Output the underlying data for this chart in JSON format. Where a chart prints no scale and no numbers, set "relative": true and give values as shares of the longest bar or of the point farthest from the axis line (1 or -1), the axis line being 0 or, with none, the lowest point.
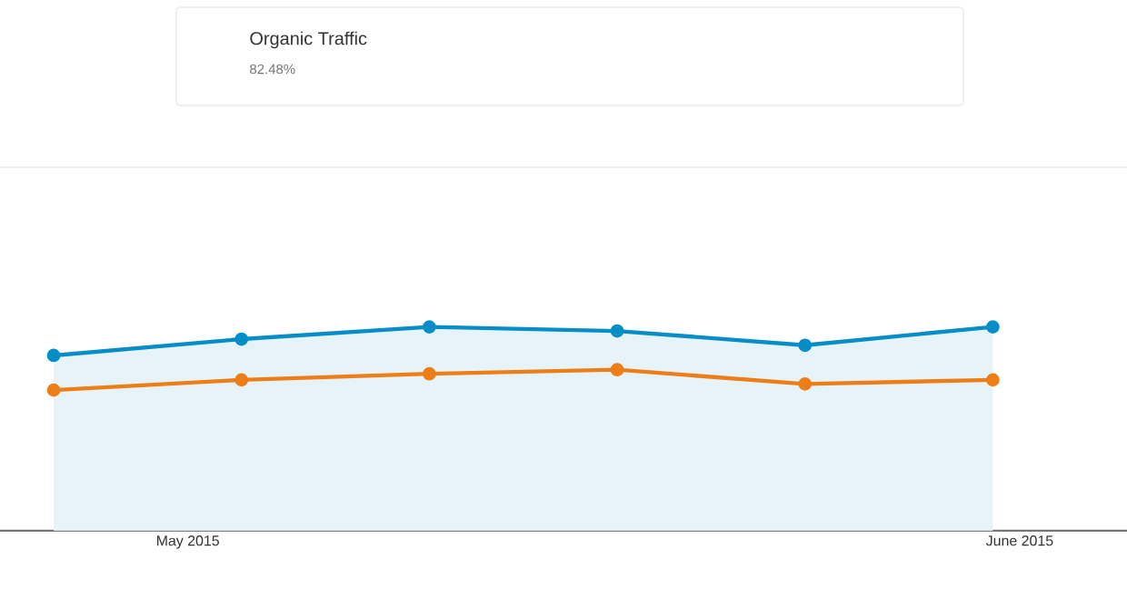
{
  "chart_data": {
    "type": "line",
    "relative": true,
    "x": [
      "2015-04-26",
      "2015-05-03",
      "2015-05-10",
      "2015-05-17",
      "2015-05-24",
      "2015-05-31"
    ],
    "xlim": [
      "2015-04-24",
      "2015-06-05"
    ],
    "xticks": [
      {
        "value": "2015-05-01",
        "label": "May 2015"
      },
      {
        "value": "2015-06-01",
        "label": "June 2015"
      }
    ],
    "series": [
      {
        "type": "area",
        "color": "#058dc7",
        "values": [
          0.86,
          0.94,
          1,
          0.98,
          0.91,
          1
        ]
      },
      {
        "color": "#ed7e17",
        "values": [
          0.69,
          0.74,
          0.77,
          0.79,
          0.72,
          0.74
        ]
      }
    ],
    "marker": "circle",
    "line_style": "solid",
    "legend": false,
    "annotations": [
      "Organic Traffic",
      "82.48%"
    ]
  }
}
